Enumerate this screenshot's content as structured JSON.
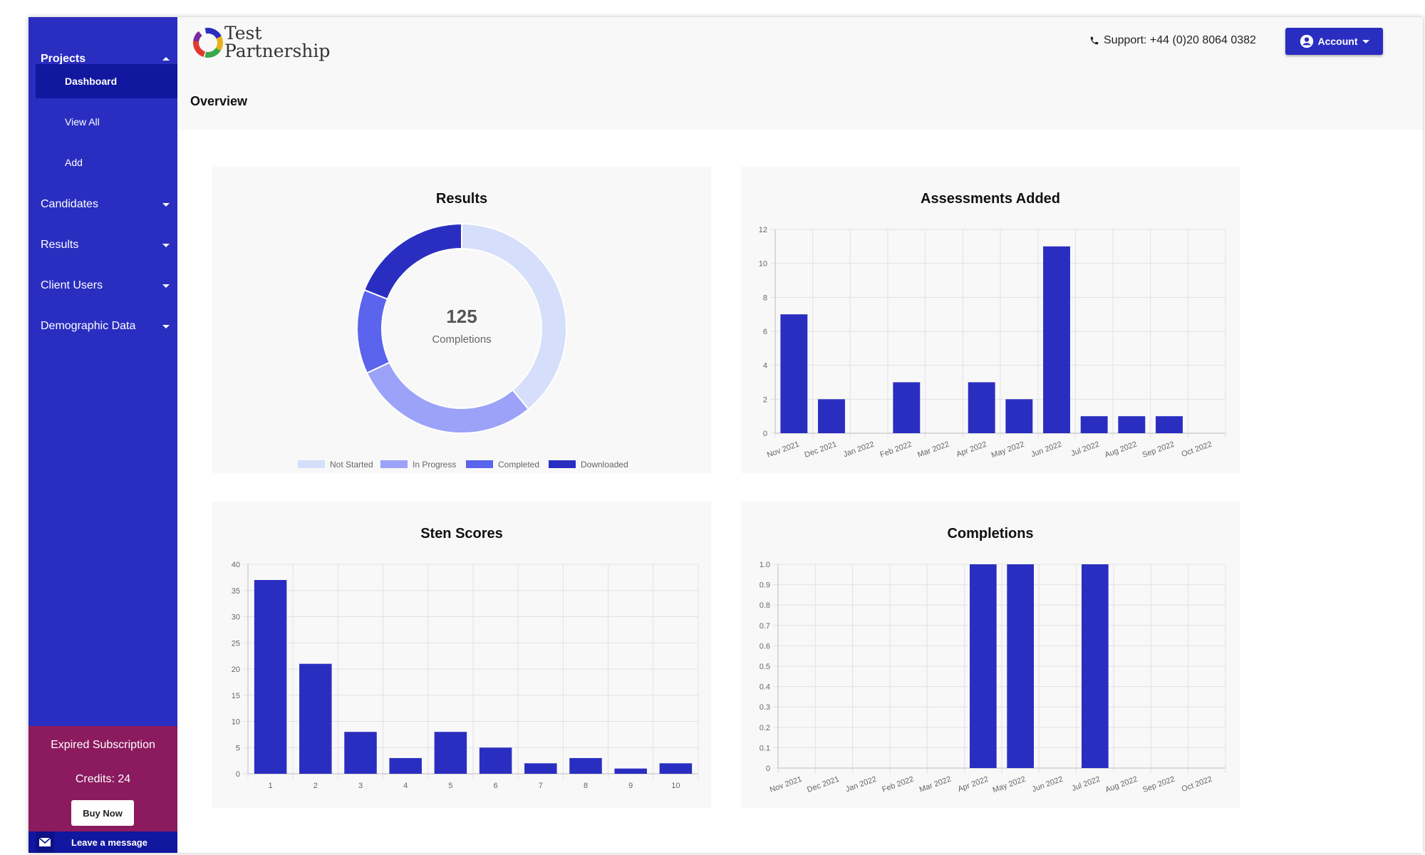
{
  "sidebar": {
    "projects_label": "Projects",
    "sub_items": [
      "Dashboard",
      "View All",
      "Add"
    ],
    "items": [
      "Candidates",
      "Results",
      "Client Users",
      "Demographic Data"
    ],
    "subscription_status": "Expired Subscription",
    "credits": "Credits: 24",
    "buy_now": "Buy Now",
    "leave_message": "Leave a message"
  },
  "header": {
    "logo_line1": "Test",
    "logo_line2": "Partnership",
    "support": "Support: +44 (0)20 8064 0382",
    "account": "Account",
    "page_title": "Overview"
  },
  "colors": {
    "sidebar": "#2a2ec0",
    "accent": "#2a2ec0",
    "bar": "#2a2ec0",
    "subscription_bg": "#8b1a5e",
    "not_started": "#d5defa",
    "in_progress": "#9ba2f8",
    "completed": "#5a64ec",
    "downloaded": "#2a2ec0"
  },
  "chart_data": [
    {
      "id": "results",
      "type": "pie",
      "title": "Results",
      "center_value": "125",
      "center_label": "Completions",
      "slices": [
        {
          "label": "Not Started",
          "value": 39
        },
        {
          "label": "In Progress",
          "value": 29
        },
        {
          "label": "Completed",
          "value": 13
        },
        {
          "label": "Downloaded",
          "value": 19
        }
      ]
    },
    {
      "id": "assessments",
      "type": "bar",
      "title": "Assessments Added",
      "categories": [
        "Nov 2021",
        "Dec 2021",
        "Jan 2022",
        "Feb 2022",
        "Mar 2022",
        "Apr 2022",
        "May 2022",
        "Jun 2022",
        "Jul 2022",
        "Aug 2022",
        "Sep 2022",
        "Oct 2022"
      ],
      "values": [
        7,
        2,
        0,
        3,
        0,
        3,
        2,
        11,
        1,
        1,
        1,
        0
      ],
      "ylim": [
        0,
        12
      ],
      "yticks": [
        "0",
        "2",
        "4",
        "6",
        "8",
        "10",
        "12"
      ],
      "grid": true
    },
    {
      "id": "sten",
      "type": "bar",
      "title": "Sten Scores",
      "categories": [
        "1",
        "2",
        "3",
        "4",
        "5",
        "6",
        "7",
        "8",
        "9",
        "10"
      ],
      "values": [
        37,
        21,
        8,
        3,
        8,
        5,
        2,
        3,
        1,
        2
      ],
      "ylim": [
        0,
        40
      ],
      "yticks": [
        "0",
        "5",
        "10",
        "15",
        "20",
        "25",
        "30",
        "35",
        "40"
      ],
      "grid": true
    },
    {
      "id": "completions",
      "type": "bar",
      "title": "Completions",
      "categories": [
        "Nov 2021",
        "Dec 2021",
        "Jan 2022",
        "Feb 2022",
        "Mar 2022",
        "Apr 2022",
        "May 2022",
        "Jun 2022",
        "Jul 2022",
        "Aug 2022",
        "Sep 2022",
        "Oct 2022"
      ],
      "values": [
        0,
        0,
        0,
        0,
        0,
        1,
        1,
        0,
        1,
        0,
        0,
        0
      ],
      "ylim": [
        0,
        1
      ],
      "yticks": [
        "0",
        "0.1",
        "0.2",
        "0.3",
        "0.4",
        "0.5",
        "0.6",
        "0.7",
        "0.8",
        "0.9",
        "1.0"
      ],
      "grid": true
    }
  ]
}
